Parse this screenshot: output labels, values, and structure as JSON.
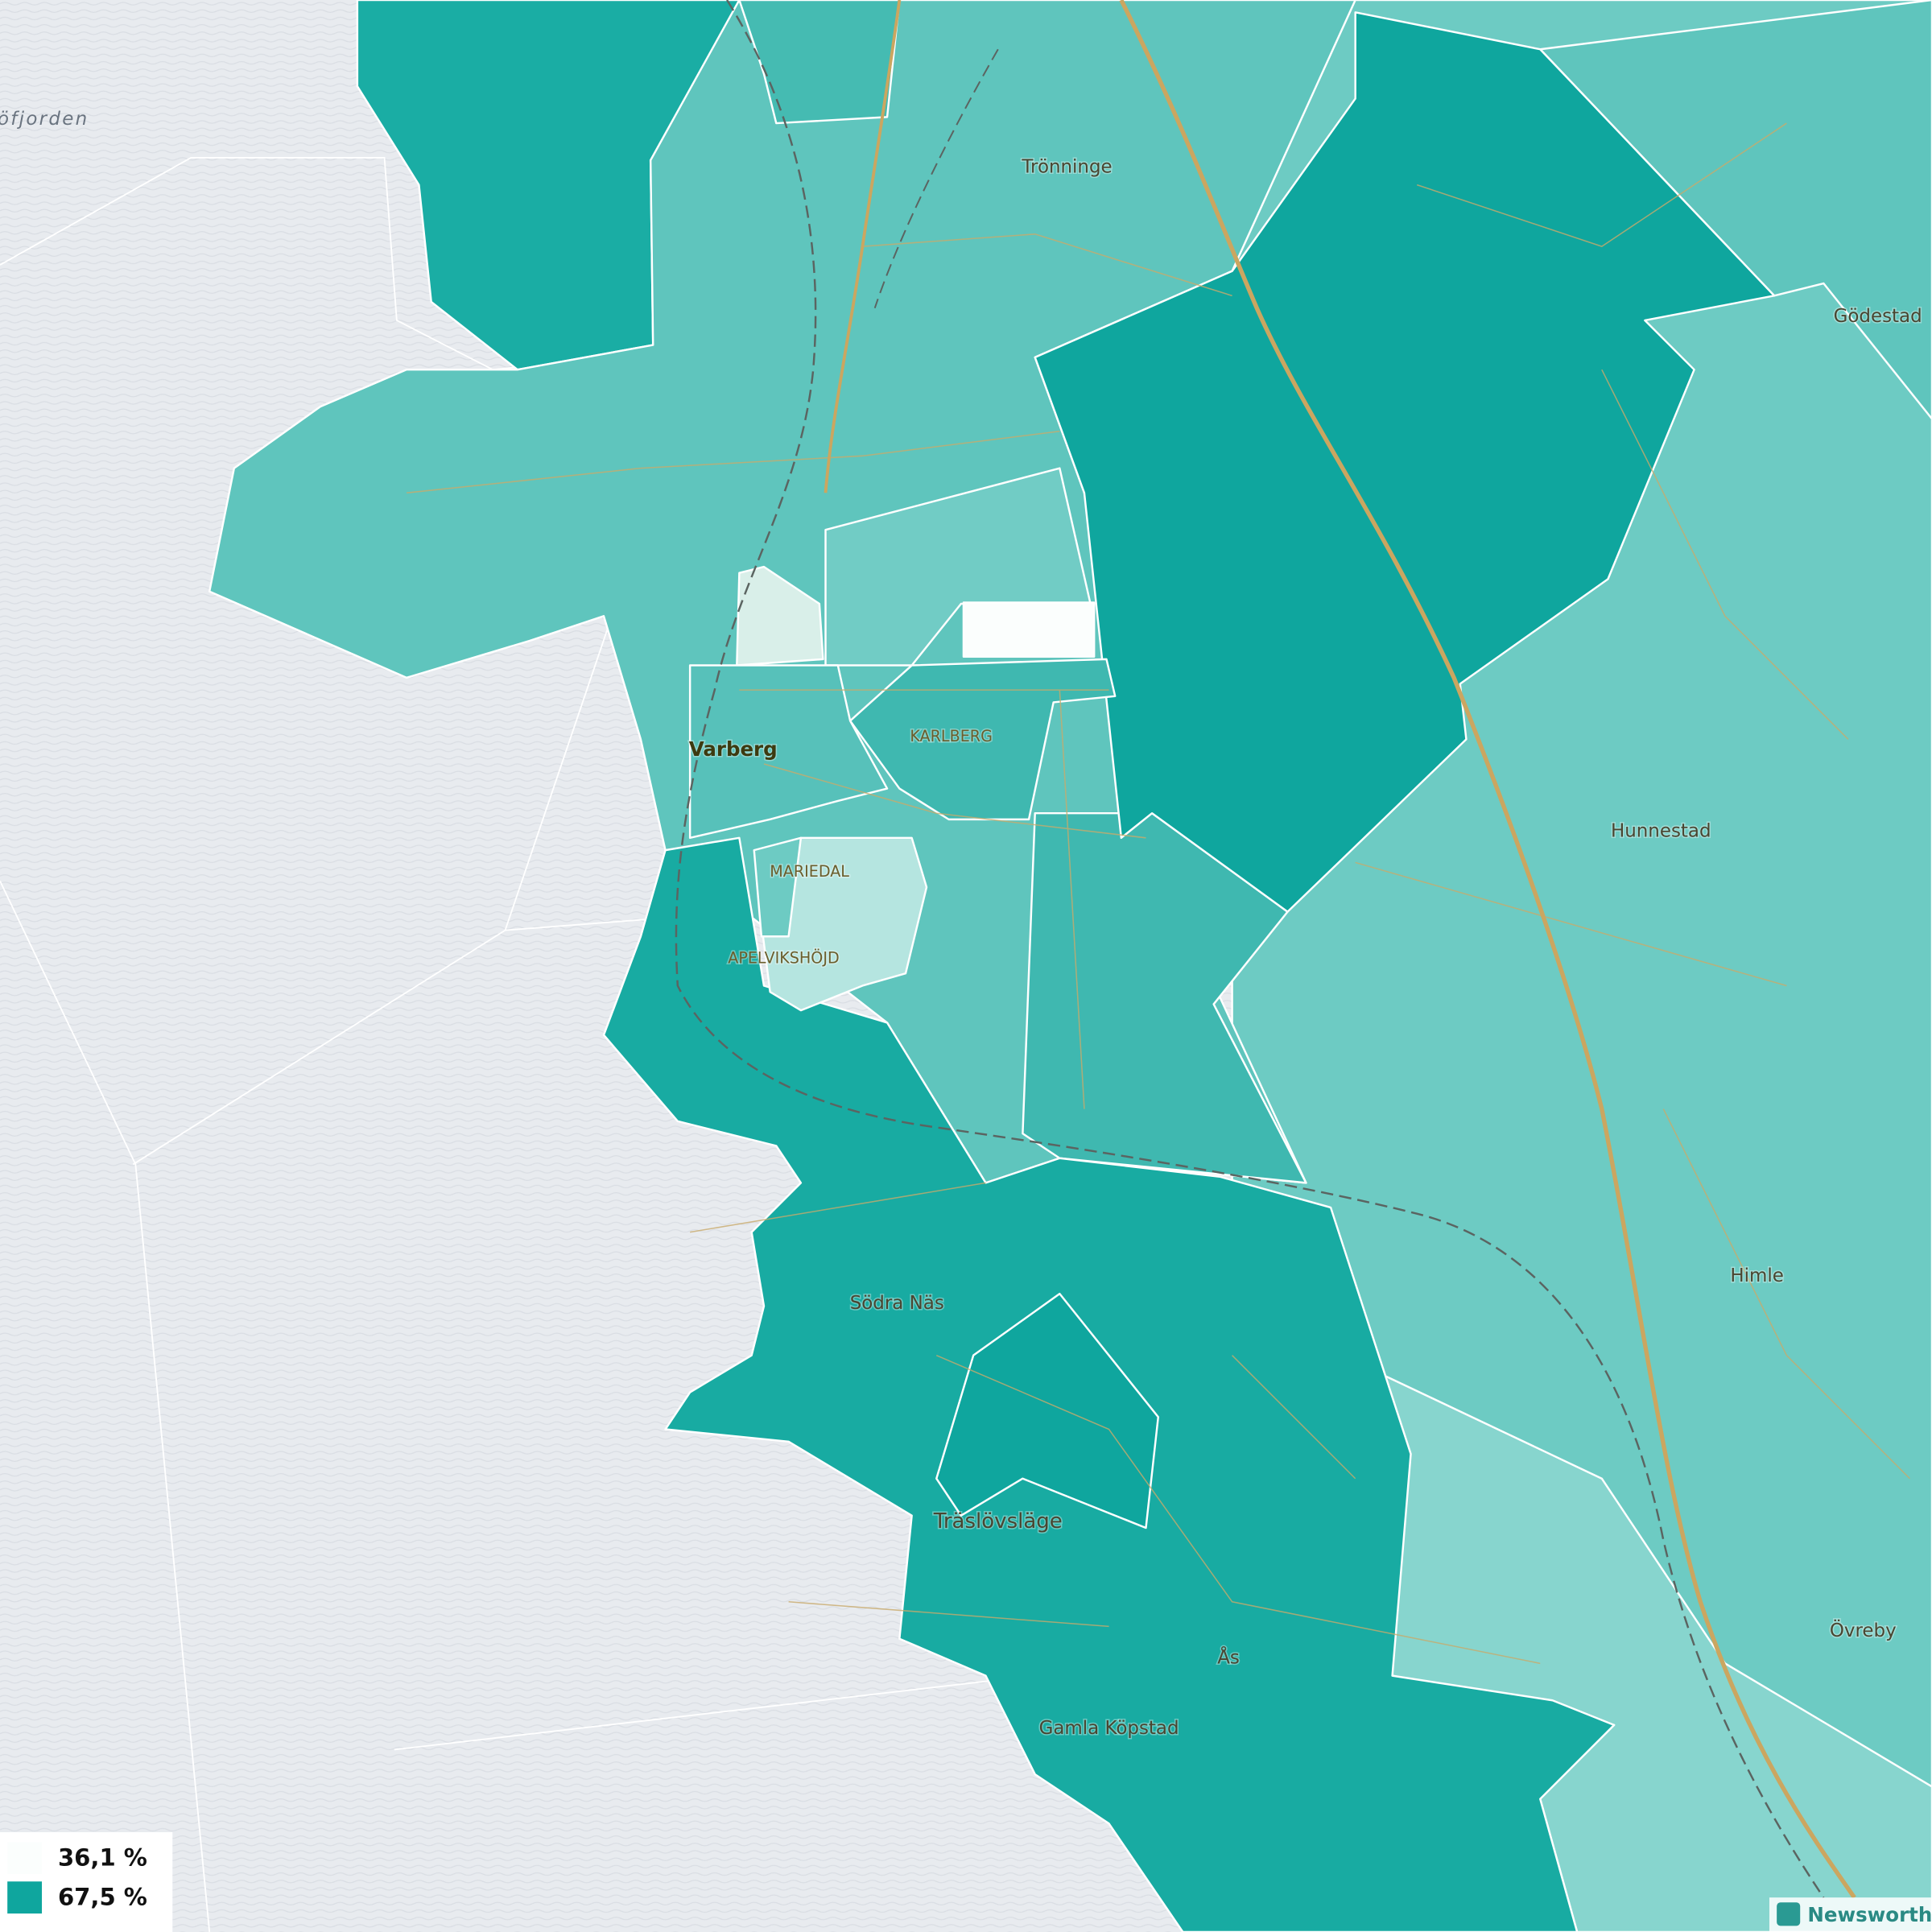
{
  "map": {
    "water_label": "öfjorden",
    "places": [
      "Trönninge",
      "Gödestad",
      "Hunnestad",
      "Varberg",
      "KARLBERG",
      "MARIEDAL",
      "APELVIKSHÖJD",
      "Himle",
      "Södra Näs",
      "Träslövsläge",
      "Övreby",
      "Ås",
      "Gamla Köpstad"
    ],
    "legend": [
      {
        "value": 36.1,
        "label": "36,1 %",
        "color": "#fbfefd"
      },
      {
        "value": 67.5,
        "label": "67,5 %",
        "color": "#0fa69e"
      }
    ],
    "brand": "Newsworthy"
  }
}
